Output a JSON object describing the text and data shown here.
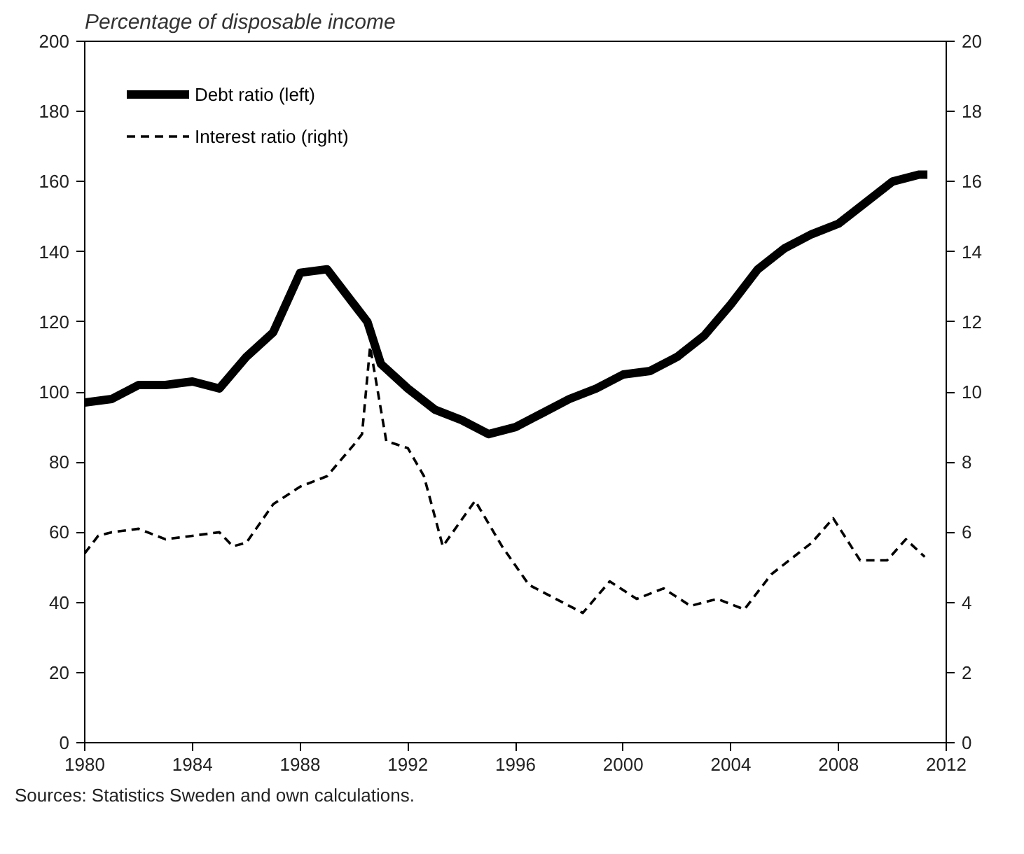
{
  "chart_data": {
    "type": "line",
    "title": "Percentage of disposable income",
    "annotations": [
      "Sources: Statistics Sweden and own calculations."
    ],
    "xlim": [
      1980,
      2012
    ],
    "xticks": [
      1980,
      1984,
      1988,
      1992,
      1996,
      2000,
      2004,
      2008,
      2012
    ],
    "ylim": [
      0,
      200
    ],
    "yticks": [
      0,
      20,
      40,
      60,
      80,
      100,
      120,
      140,
      160,
      180,
      200
    ],
    "y2lim": [
      0,
      20
    ],
    "y2ticks": [
      0,
      2,
      4,
      6,
      8,
      10,
      12,
      14,
      16,
      18,
      20
    ],
    "grid": false,
    "legend": "top left",
    "series": [
      {
        "name": "Debt ratio (left)",
        "color": "#000000",
        "line_style": "solid",
        "x": [
          1980,
          1981,
          1982,
          1983,
          1984,
          1985,
          1986,
          1987,
          1988,
          1989,
          1990,
          1990.5,
          1991,
          1992,
          1993,
          1994,
          1995,
          1996,
          1997,
          1998,
          1999,
          2000,
          2001,
          2002,
          2003,
          2004,
          2005,
          2006,
          2007,
          2008,
          2009,
          2010,
          2011,
          2011.3
        ],
        "values": [
          97,
          98,
          102,
          102,
          103,
          101,
          110,
          117,
          134,
          135,
          125,
          120,
          108,
          101,
          95,
          92,
          88,
          90,
          94,
          98,
          101,
          105,
          106,
          110,
          116,
          125,
          135,
          141,
          145,
          148,
          154,
          160,
          162,
          162
        ]
      },
      {
        "name": "Interest ratio (right)",
        "color": "#000000",
        "line_style": "dashed",
        "axis": "y2",
        "x": [
          1980,
          1980.5,
          1981,
          1982,
          1983,
          1984,
          1985,
          1985.5,
          1986,
          1987,
          1988,
          1989,
          1990,
          1990.3,
          1990.6,
          1991.2,
          1992,
          1992.6,
          1993.3,
          1994.5,
          1995.5,
          1996.5,
          1997.5,
          1998.5,
          1999.5,
          2000.5,
          2001.5,
          2002.5,
          2003.5,
          2004.5,
          2005.5,
          2007,
          2007.8,
          2008.8,
          2009.8,
          2010.5,
          2011.2
        ],
        "values": [
          5.4,
          5.9,
          6.0,
          6.1,
          5.8,
          5.9,
          6.0,
          5.6,
          5.7,
          6.8,
          7.3,
          7.6,
          8.5,
          8.8,
          11.3,
          8.6,
          8.4,
          7.6,
          5.6,
          6.9,
          5.6,
          4.5,
          4.1,
          3.7,
          4.6,
          4.1,
          4.4,
          3.9,
          4.1,
          3.8,
          4.8,
          5.7,
          6.4,
          5.2,
          5.2,
          5.8,
          5.3
        ]
      }
    ]
  }
}
